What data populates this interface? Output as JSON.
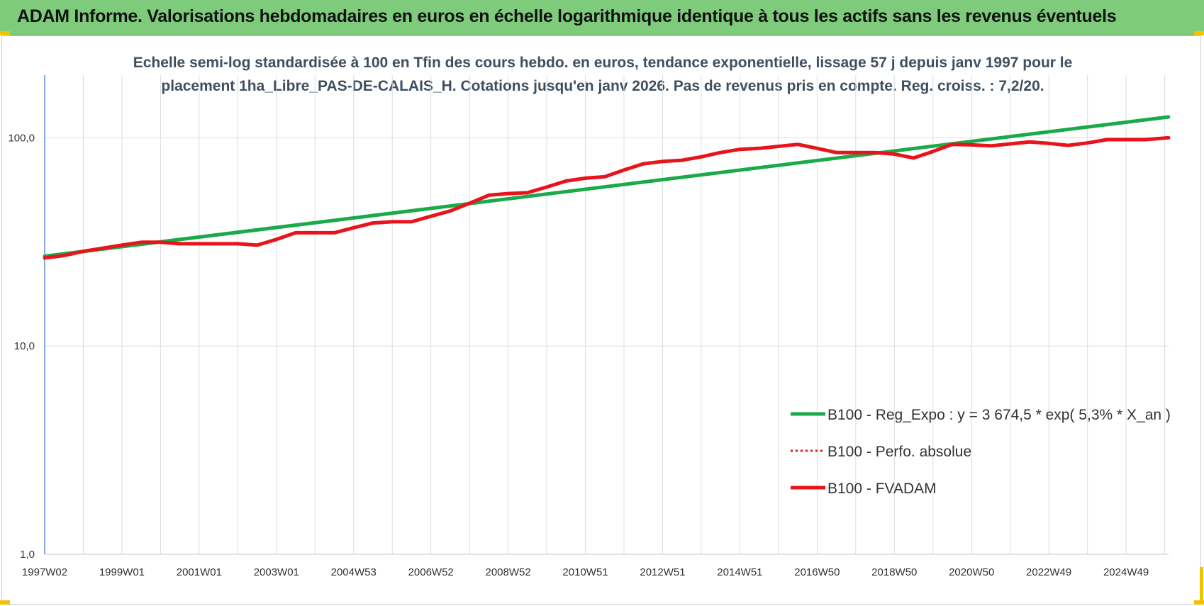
{
  "header": {
    "title": "ADAM Informe. Valorisations hebdomadaires en euros en échelle logarithmique identique à tous les actifs sans les revenus éventuels"
  },
  "colors": {
    "header_bg": "#7dcb7b",
    "trend": "#1aaa4a",
    "fvadam": "#e8141b",
    "perf": "#e8141b",
    "axis": "#5b8fcf",
    "grid": "#d9dde2"
  },
  "chart_data": {
    "type": "line",
    "title_line1": "Echelle semi-log standardisée à 100 en Tfin des cours hebdo. en euros, tendance exponentielle, lissage 57 j depuis janv 1997 pour le",
    "title_line2": "placement 1ha_Libre_PAS-DE-CALAIS_H. Cotations jusqu'en janv 2026. Pas de revenus pris en compte. Reg. croiss. : 7,2/20.",
    "y_scale": "log",
    "ylim": [
      1,
      200
    ],
    "y_ticks": [
      {
        "value": 1,
        "label": "1,0"
      },
      {
        "value": 10,
        "label": "10,0"
      },
      {
        "value": 100,
        "label": "100,0"
      }
    ],
    "x_ticks": [
      {
        "value": 1997.0,
        "label": "1997W02"
      },
      {
        "value": 1999.0,
        "label": "1999W01"
      },
      {
        "value": 2001.0,
        "label": "2001W01"
      },
      {
        "value": 2003.0,
        "label": "2003W01"
      },
      {
        "value": 2005.0,
        "label": "2004W53"
      },
      {
        "value": 2007.0,
        "label": "2006W52"
      },
      {
        "value": 2009.0,
        "label": "2008W52"
      },
      {
        "value": 2011.0,
        "label": "2010W51"
      },
      {
        "value": 2013.0,
        "label": "2012W51"
      },
      {
        "value": 2015.0,
        "label": "2014W51"
      },
      {
        "value": 2017.0,
        "label": "2016W50"
      },
      {
        "value": 2019.0,
        "label": "2018W50"
      },
      {
        "value": 2021.0,
        "label": "2020W50"
      },
      {
        "value": 2023.0,
        "label": "2022W49"
      },
      {
        "value": 2025.0,
        "label": "2024W49"
      }
    ],
    "x_range": [
      1997.0,
      2026.1
    ],
    "grid": true,
    "legend_position": "bottom-right",
    "series": [
      {
        "name": "B100 - Reg_Expo : y = 3 674,5 * exp( 5,3% *  X_an )",
        "style": "solid-green",
        "x": [
          1997.0,
          2026.1
        ],
        "values": [
          27,
          126
        ]
      },
      {
        "name": "B100 - Perfo. absolue",
        "style": "dotted-red",
        "x": [],
        "values": []
      },
      {
        "name": "B100 - FVADAM",
        "style": "solid-red",
        "x": [
          1997.0,
          1997.5,
          1998.0,
          1998.5,
          1999.0,
          1999.5,
          2000.0,
          2000.5,
          2001.0,
          2001.5,
          2002.0,
          2002.5,
          2003.0,
          2003.5,
          2004.0,
          2004.5,
          2005.0,
          2005.5,
          2006.0,
          2006.5,
          2007.0,
          2007.5,
          2008.0,
          2008.5,
          2009.0,
          2009.5,
          2010.0,
          2010.5,
          2011.0,
          2011.5,
          2012.0,
          2012.5,
          2013.0,
          2013.5,
          2014.0,
          2014.5,
          2015.0,
          2015.5,
          2016.0,
          2016.5,
          2017.0,
          2017.5,
          2018.0,
          2018.5,
          2019.0,
          2019.5,
          2020.0,
          2020.5,
          2021.0,
          2021.5,
          2022.0,
          2022.5,
          2023.0,
          2023.5,
          2024.0,
          2024.5,
          2025.0,
          2025.5,
          2026.1
        ],
        "values": [
          26.5,
          27.2,
          28.5,
          29.5,
          30.5,
          31.5,
          31.5,
          31.0,
          31.0,
          31.0,
          31.0,
          30.5,
          32.5,
          35.0,
          35.0,
          35.0,
          37.0,
          39.0,
          39.5,
          39.5,
          42.0,
          44.5,
          48.5,
          53.0,
          54.0,
          54.5,
          58.0,
          62.0,
          64.0,
          65.0,
          70.0,
          75.0,
          77.0,
          78.0,
          81.0,
          85.0,
          88.0,
          89.0,
          91.0,
          93.0,
          89.0,
          85.0,
          85.0,
          85.0,
          83.5,
          80.0,
          86.0,
          93.0,
          92.5,
          91.5,
          93.5,
          95.5,
          94.0,
          92.0,
          94.5,
          98.0,
          98.0,
          98.0,
          100.0
        ]
      }
    ]
  }
}
